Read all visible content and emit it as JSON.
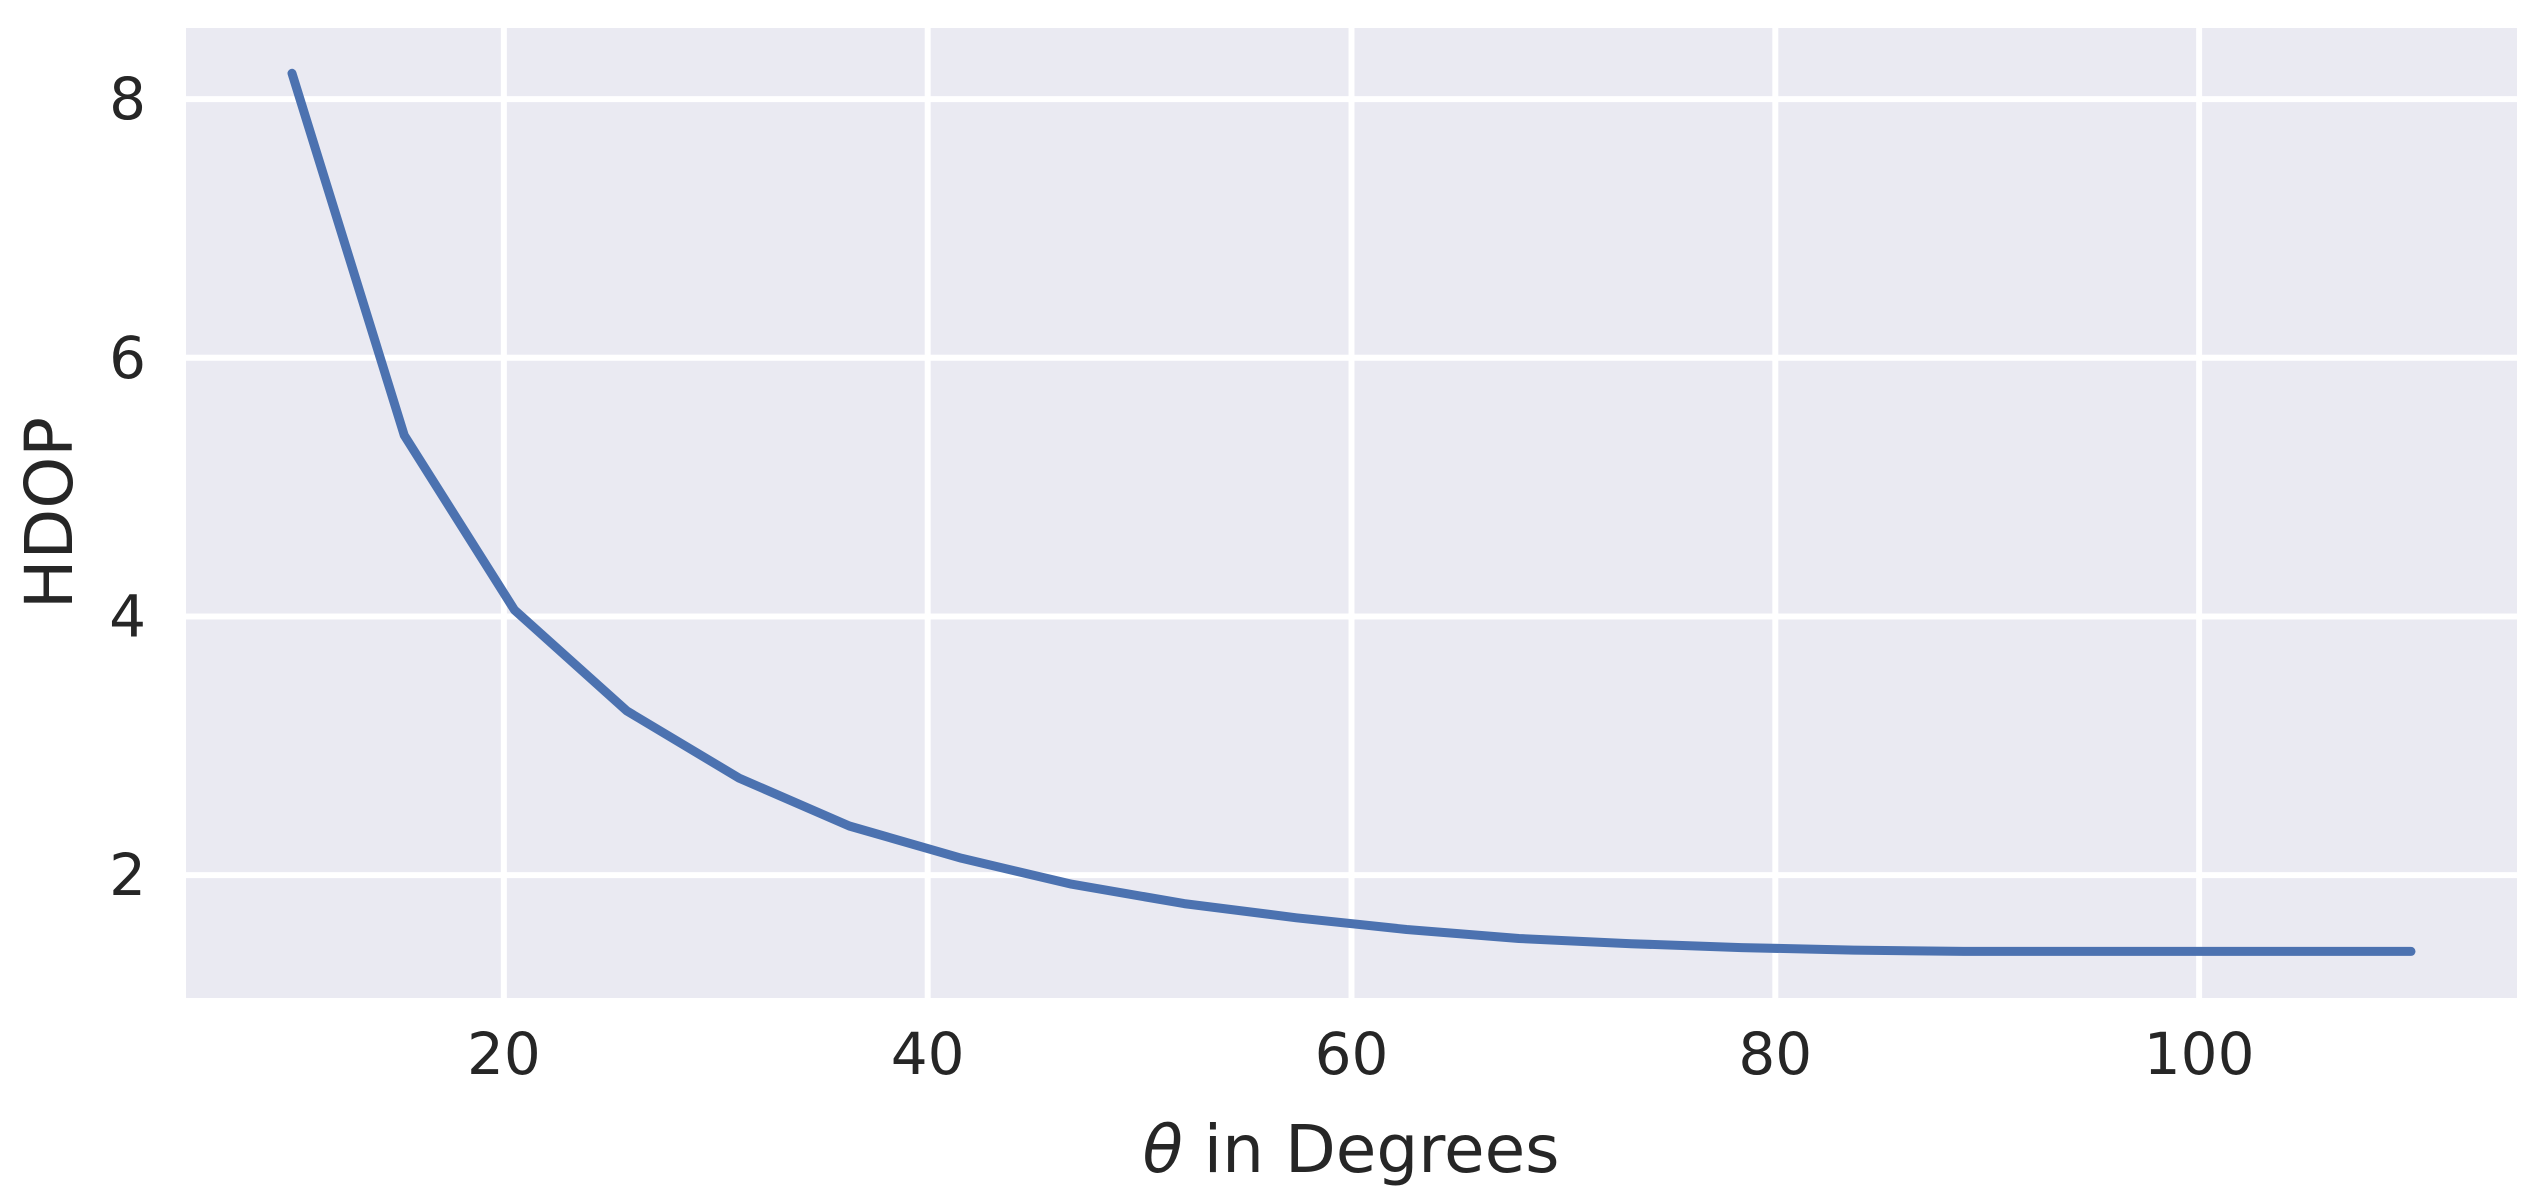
{
  "chart_data": {
    "type": "line",
    "title": "",
    "xlabel": "θ in Degrees",
    "xlabel_symbol": "θ",
    "xlabel_rest": " in Degrees",
    "ylabel": "HDOP",
    "xlim": [
      5,
      115
    ],
    "ylim": [
      1.05,
      8.55
    ],
    "xticks": [
      20,
      40,
      60,
      80,
      100
    ],
    "yticks": [
      2,
      4,
      6,
      8
    ],
    "grid": true,
    "background_color": "#EAEAF2",
    "grid_color": "#FFFFFF",
    "series": [
      {
        "color": "#4C72B0",
        "x": [
          10,
          15.3,
          20.5,
          25.8,
          31.1,
          36.3,
          41.6,
          46.8,
          52.1,
          57.4,
          62.6,
          67.9,
          73.2,
          78.4,
          83.7,
          88.9,
          94.2,
          99.5,
          104.7,
          110
        ],
        "y": [
          8.2,
          5.4,
          4.05,
          3.27,
          2.75,
          2.38,
          2.13,
          1.93,
          1.78,
          1.67,
          1.58,
          1.51,
          1.47,
          1.44,
          1.42,
          1.41,
          1.41,
          1.41,
          1.41,
          1.41
        ]
      }
    ]
  }
}
